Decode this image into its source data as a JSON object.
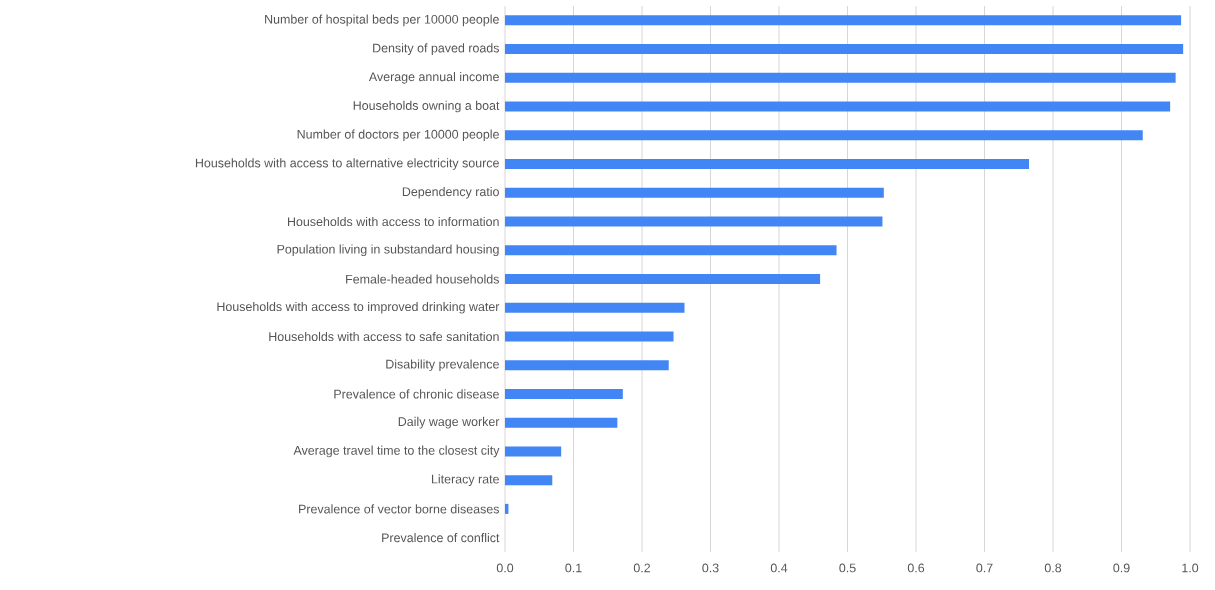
{
  "chart_data": {
    "type": "bar",
    "orientation": "horizontal",
    "color": "#4285f4",
    "grid": "x",
    "categories": [
      "Number of hospital beds per 10000 people",
      "Density of paved roads",
      "Average annual income",
      "Households owning a boat",
      "Number of doctors per 10000 people",
      "Households with access to alternative electricity source",
      "Dependency ratio",
      "Households with access to information",
      "Population living in substandard housing",
      "Female-headed households",
      "Households with access to improved drinking water",
      "Households with access to safe sanitation",
      "Disability prevalence",
      "Prevalence of chronic disease",
      "Daily wage worker",
      "Average travel time to the closest city",
      "Literacy rate",
      "Prevalence of vector borne diseases",
      "Prevalence of conflict"
    ],
    "values": [
      0.987,
      0.99,
      0.979,
      0.971,
      0.931,
      0.765,
      0.553,
      0.551,
      0.484,
      0.46,
      0.262,
      0.246,
      0.239,
      0.172,
      0.164,
      0.082,
      0.069,
      0.005,
      0
    ],
    "xlim": [
      0,
      1
    ],
    "xticks": [
      {
        "value": 0,
        "label": "0.0"
      },
      {
        "value": 0.1,
        "label": "0.1"
      },
      {
        "value": 0.2,
        "label": "0.2"
      },
      {
        "value": 0.3,
        "label": "0.3"
      },
      {
        "value": 0.4,
        "label": "0.4"
      },
      {
        "value": 0.5,
        "label": "0.5"
      },
      {
        "value": 0.6,
        "label": "0.6"
      },
      {
        "value": 0.7,
        "label": "0.7"
      },
      {
        "value": 0.8,
        "label": "0.8"
      },
      {
        "value": 0.9,
        "label": "0.9"
      },
      {
        "value": 1,
        "label": "1.0"
      }
    ]
  }
}
